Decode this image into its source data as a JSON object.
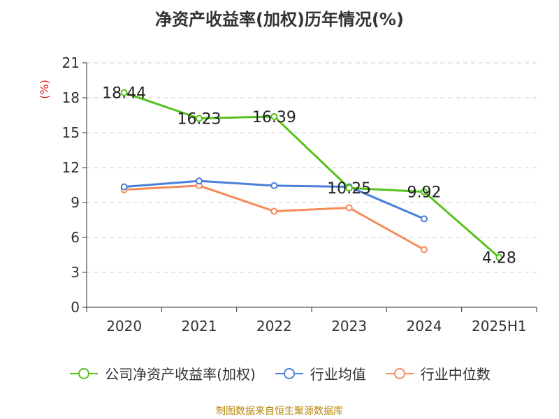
{
  "title": "净资产收益率(加权)历年情况(%)",
  "source": "制图数据来自恒生聚源数据库",
  "colors": {
    "green": "#55c21b",
    "blue": "#4a7fd9",
    "orange": "#f58a5a",
    "grid": "#cccccc",
    "axis": "#333333",
    "ylabel": "#e02020"
  },
  "chart_data": {
    "type": "line",
    "categories": [
      "2020",
      "2021",
      "2022",
      "2023",
      "2024",
      "2025H1"
    ],
    "ylabel": "(%)",
    "ylim": [
      0,
      21
    ],
    "yticks": [
      0,
      3,
      6,
      9,
      12,
      15,
      18,
      21
    ],
    "grid": true,
    "legend_position": "bottom",
    "series": [
      {
        "name": "公司净资产收益率(加权)",
        "color": "#55c21b",
        "values": [
          18.44,
          16.23,
          16.39,
          10.25,
          9.92,
          4.28
        ],
        "show_labels": true
      },
      {
        "name": "行业均值",
        "color": "#4a7fd9",
        "values": [
          10.35,
          10.85,
          10.45,
          10.35,
          7.6,
          null
        ],
        "show_labels": false
      },
      {
        "name": "行业中位数",
        "color": "#f58a5a",
        "values": [
          10.1,
          10.45,
          8.25,
          8.55,
          4.95,
          null
        ],
        "show_labels": false
      }
    ],
    "data_labels": [
      "18.44",
      "16.23",
      "16.39",
      "10.25",
      "9.92",
      "4.28"
    ]
  }
}
